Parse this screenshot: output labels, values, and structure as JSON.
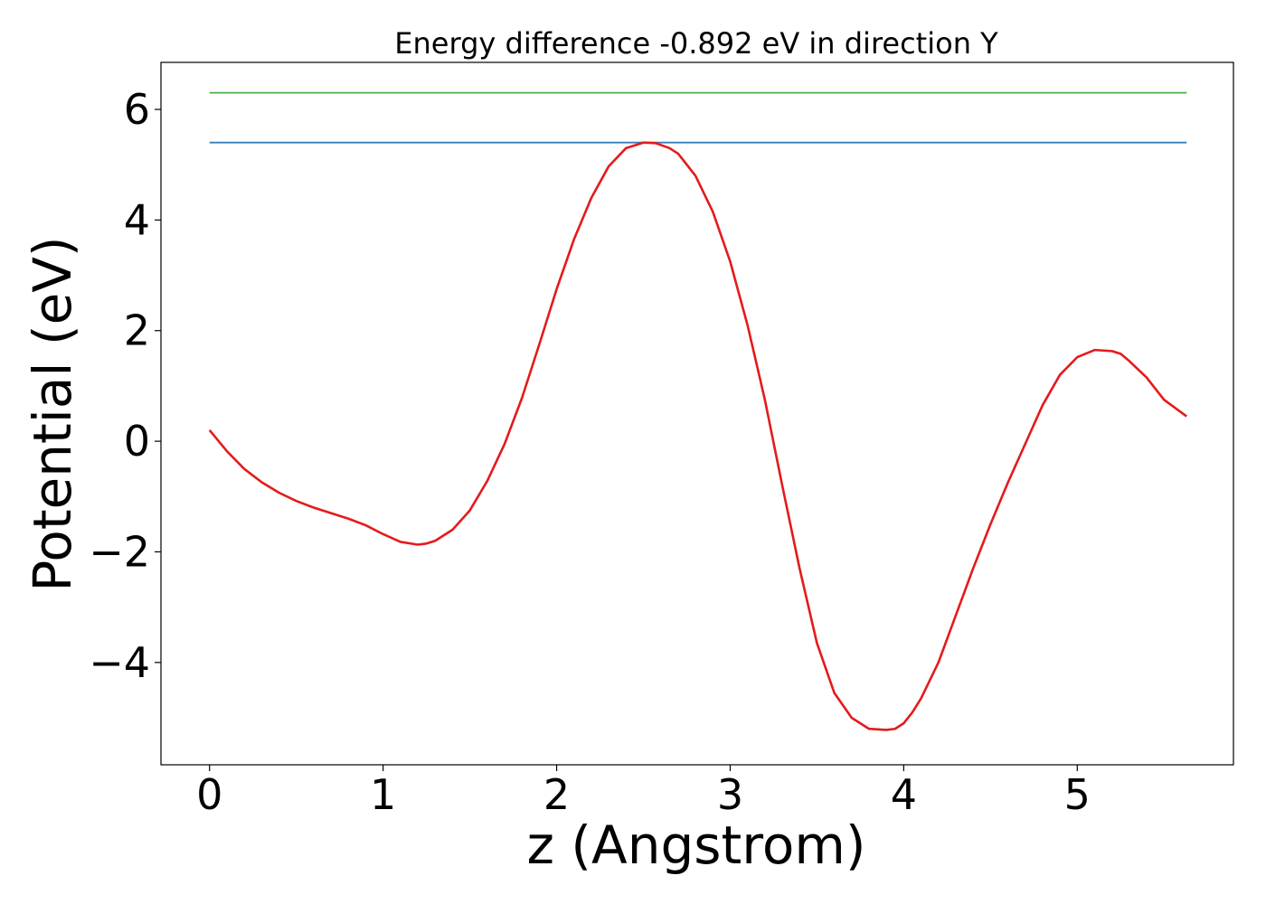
{
  "chart_data": {
    "type": "line",
    "title": "Energy difference -0.892 eV in direction Y",
    "xlabel": "z (Angstrom)",
    "ylabel": "Potential (eV)",
    "xlim": [
      -0.28,
      5.9
    ],
    "ylim": [
      -5.85,
      6.85
    ],
    "xticks": [
      0,
      1,
      2,
      3,
      4,
      5
    ],
    "xtick_labels": [
      "0",
      "1",
      "2",
      "3",
      "4",
      "5"
    ],
    "yticks": [
      -4,
      -2,
      0,
      2,
      4,
      6
    ],
    "ytick_labels": [
      "−4",
      "−2",
      "0",
      "2",
      "4",
      "6"
    ],
    "grid": false,
    "series": [
      {
        "color": "#e41a1c",
        "x": [
          0.0,
          0.1,
          0.2,
          0.3,
          0.4,
          0.5,
          0.6,
          0.7,
          0.8,
          0.9,
          1.0,
          1.1,
          1.2,
          1.25,
          1.3,
          1.4,
          1.5,
          1.6,
          1.7,
          1.8,
          1.9,
          2.0,
          2.1,
          2.2,
          2.3,
          2.4,
          2.5,
          2.57,
          2.65,
          2.7,
          2.8,
          2.9,
          3.0,
          3.1,
          3.2,
          3.3,
          3.4,
          3.5,
          3.6,
          3.7,
          3.8,
          3.9,
          3.95,
          4.0,
          4.05,
          4.1,
          4.2,
          4.3,
          4.4,
          4.5,
          4.6,
          4.7,
          4.8,
          4.9,
          5.0,
          5.1,
          5.2,
          5.25,
          5.3,
          5.4,
          5.5,
          5.63
        ],
        "y": [
          0.2,
          -0.18,
          -0.5,
          -0.74,
          -0.93,
          -1.08,
          -1.2,
          -1.3,
          -1.4,
          -1.52,
          -1.68,
          -1.82,
          -1.87,
          -1.85,
          -1.8,
          -1.6,
          -1.25,
          -0.72,
          -0.05,
          0.78,
          1.75,
          2.75,
          3.65,
          4.4,
          4.97,
          5.3,
          5.4,
          5.39,
          5.3,
          5.2,
          4.8,
          4.15,
          3.25,
          2.1,
          0.75,
          -0.8,
          -2.3,
          -3.65,
          -4.55,
          -5.0,
          -5.2,
          -5.22,
          -5.2,
          -5.1,
          -4.9,
          -4.65,
          -4.0,
          -3.15,
          -2.3,
          -1.5,
          -0.75,
          -0.05,
          0.65,
          1.2,
          1.52,
          1.65,
          1.63,
          1.58,
          1.45,
          1.15,
          0.75,
          0.45
        ]
      },
      {
        "color": "#377eb8",
        "x": [
          0.0,
          5.63
        ],
        "y": [
          5.4,
          5.4
        ]
      },
      {
        "color": "#4daf4a",
        "x": [
          0.0,
          5.63
        ],
        "y": [
          6.3,
          6.3
        ]
      }
    ]
  }
}
